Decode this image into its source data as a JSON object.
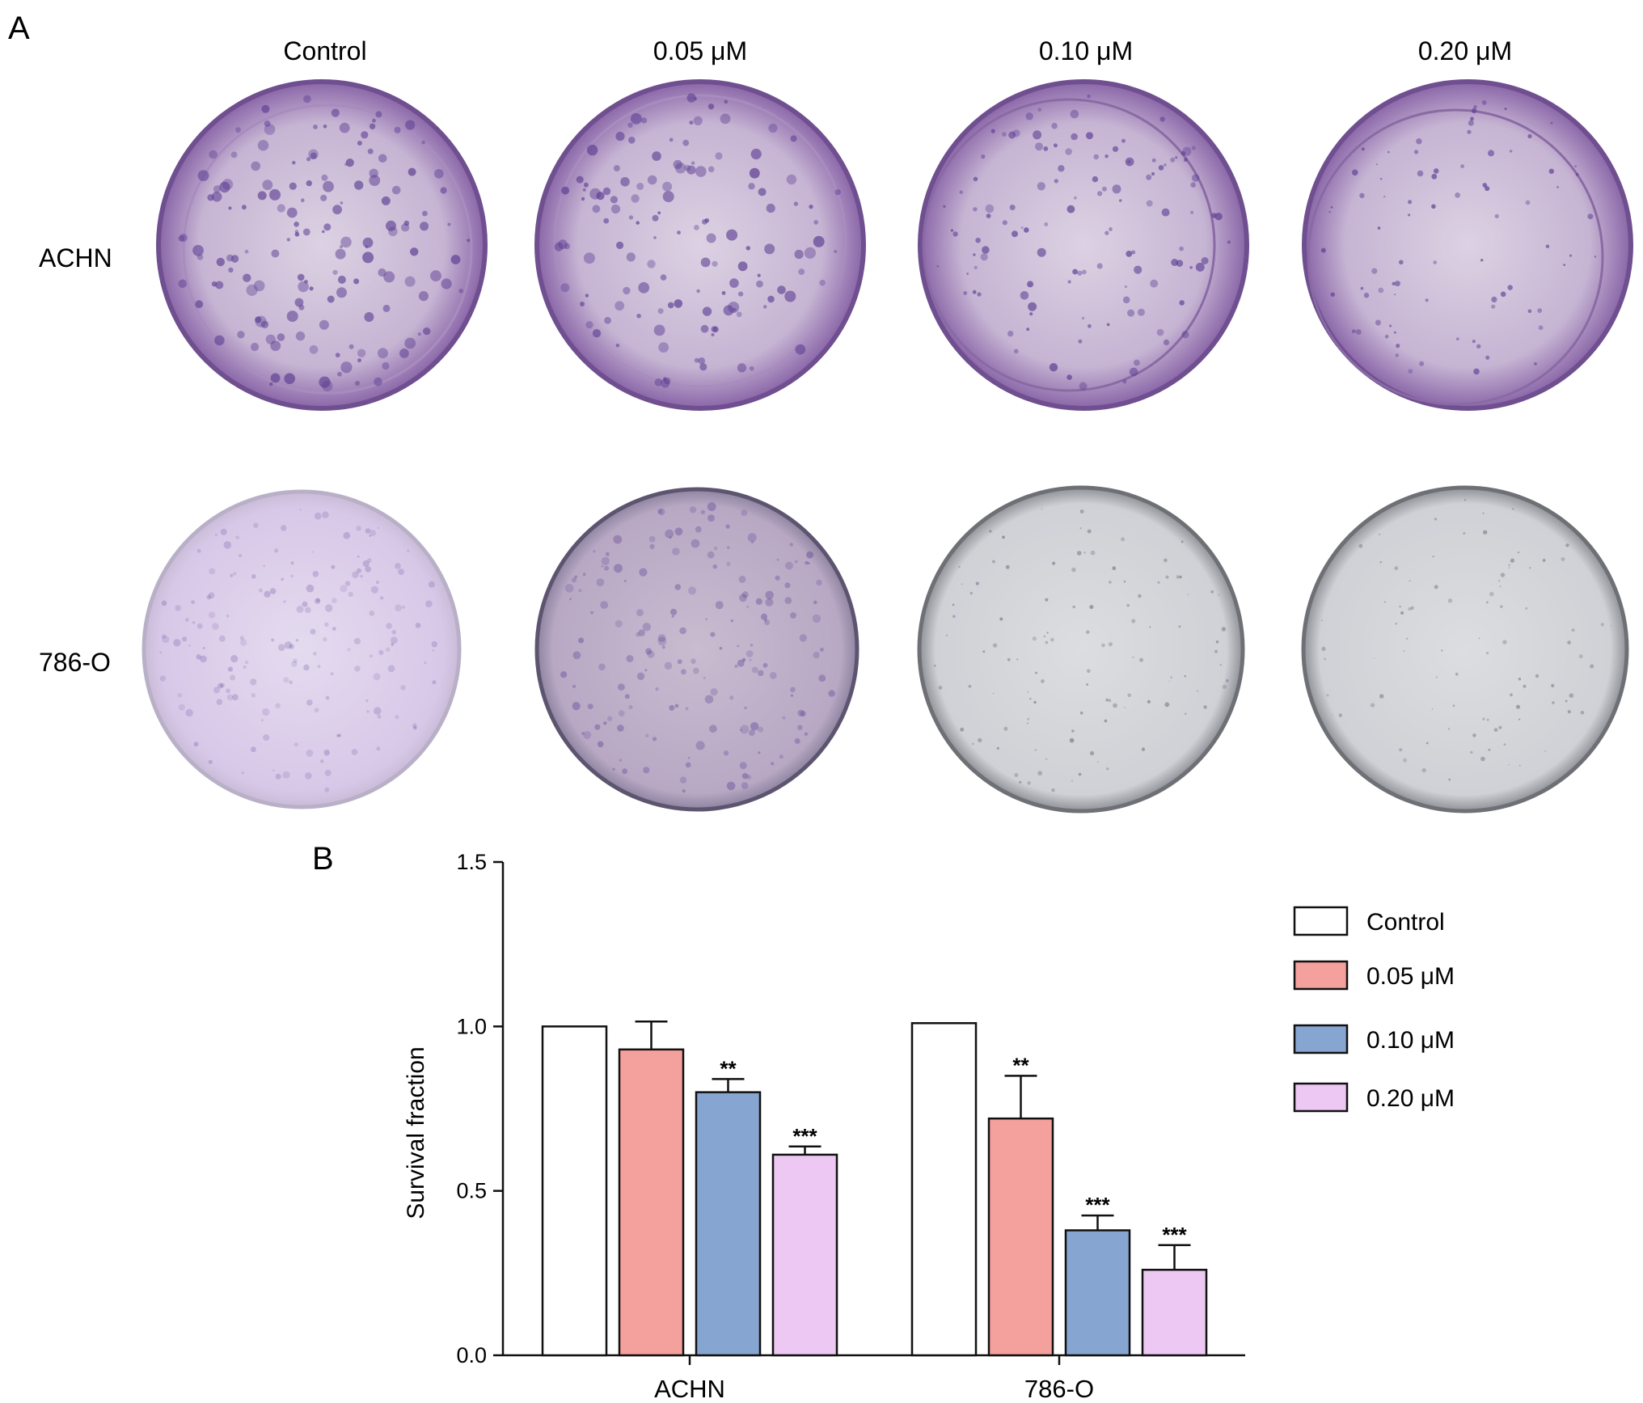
{
  "panel_a": {
    "letter": "A",
    "columns": [
      "Control",
      "0.05 μM",
      "0.10 μM",
      "0.20 μM"
    ],
    "rows": [
      "ACHN",
      "786-O"
    ],
    "colors": {
      "achn_stain": "#8a66a8",
      "o786_control_stain": "#d8c8e8",
      "o786_005_stain": "#b8a8c4",
      "o786_high_stain": "#cfd1d6",
      "colony_purple": "#5b3d92",
      "colony_grey": "#6e6e80"
    }
  },
  "panel_b": {
    "letter": "B"
  },
  "chart_data": {
    "type": "bar",
    "categories": [
      "ACHN",
      "786-O"
    ],
    "series": [
      {
        "name": "Control",
        "values": [
          1.0,
          1.01
        ],
        "errors": [
          0,
          0
        ],
        "color": "#ffffff"
      },
      {
        "name": "0.05 μM",
        "values": [
          0.93,
          0.72
        ],
        "errors": [
          0.085,
          0.13
        ],
        "color": "#f4a09c"
      },
      {
        "name": "0.10 μM",
        "values": [
          0.8,
          0.38
        ],
        "errors": [
          0.04,
          0.045
        ],
        "color": "#87a5d1"
      },
      {
        "name": "0.20 μM",
        "values": [
          0.61,
          0.26
        ],
        "errors": [
          0.025,
          0.075
        ],
        "color": "#ecc8f2"
      }
    ],
    "significance": [
      [
        "",
        "",
        "**",
        "***"
      ],
      [
        "",
        "**",
        "***",
        "***"
      ]
    ],
    "ylabel": "Survival fraction",
    "ylim": [
      0,
      1.5
    ],
    "yticks": [
      0.0,
      0.5,
      1.0,
      1.5
    ],
    "ytick_labels": [
      "0.0",
      "0.5",
      "1.0",
      "1.5"
    ],
    "legend_position": "right",
    "grid": false
  }
}
